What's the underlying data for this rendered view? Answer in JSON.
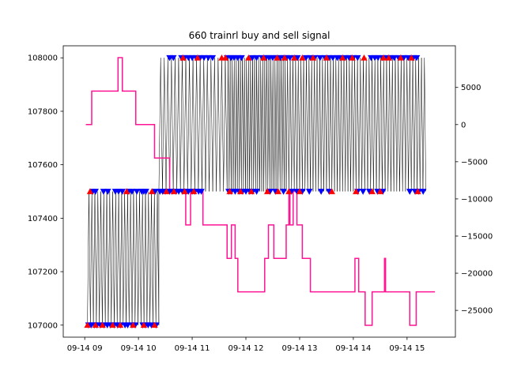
{
  "chart_data": {
    "type": "line",
    "title": "660 trainrl buy and sell signal",
    "xlabel": "",
    "ylabel": "",
    "ylabel_right": "",
    "x_tick_labels": [
      "09-14 09",
      "09-14 10",
      "09-14 11",
      "09-14 12",
      "09-14 13",
      "09-14 14",
      "09-14 15"
    ],
    "x_tick_hours": [
      9,
      10,
      11,
      12,
      13,
      14,
      15
    ],
    "xlim_hours": [
      8.6,
      15.9
    ],
    "left_axis": {
      "ylim": [
        106955,
        108045
      ],
      "ticks": [
        107000,
        107200,
        107400,
        107600,
        107800,
        108000
      ],
      "tick_labels": [
        "107000",
        "107200",
        "107400",
        "107600",
        "107800",
        "108000"
      ]
    },
    "right_axis": {
      "ylim": [
        -28600,
        10600
      ],
      "ticks": [
        -25000,
        -20000,
        -15000,
        -10000,
        -5000,
        0,
        5000
      ],
      "tick_labels": [
        "−25000",
        "−20000",
        "−15000",
        "−10000",
        "−5000",
        "0",
        "5000"
      ]
    },
    "colors": {
      "price": "#000000",
      "position": "#ff1493",
      "buy_marker": "#ff0000",
      "sell_marker": "#0000ff"
    },
    "series": [
      {
        "role": "price",
        "axis": "left",
        "segments": [
          {
            "x_start": 9.05,
            "x_end": 10.38,
            "low": 107000,
            "high": 107500,
            "alternations": 48
          },
          {
            "x_start": 10.38,
            "x_end": 11.65,
            "low": 107500,
            "high": 108000,
            "alternations": 38
          },
          {
            "x_start": 11.65,
            "x_end": 12.75,
            "low": 107500,
            "high": 108000,
            "alternations": 58
          },
          {
            "x_start": 12.75,
            "x_end": 14.05,
            "low": 107500,
            "high": 108000,
            "alternations": 52
          },
          {
            "x_start": 14.05,
            "x_end": 15.35,
            "low": 107500,
            "high": 108000,
            "alternations": 48
          }
        ]
      },
      {
        "role": "position",
        "axis": "right",
        "points": [
          [
            9.02,
            0
          ],
          [
            9.13,
            0
          ],
          [
            9.13,
            4500
          ],
          [
            9.62,
            4500
          ],
          [
            9.62,
            9000
          ],
          [
            9.7,
            9000
          ],
          [
            9.7,
            4500
          ],
          [
            9.95,
            4500
          ],
          [
            9.95,
            0
          ],
          [
            10.3,
            0
          ],
          [
            10.3,
            -4500
          ],
          [
            10.58,
            -4500
          ],
          [
            10.58,
            -9000
          ],
          [
            10.88,
            -9000
          ],
          [
            10.88,
            -13500
          ],
          [
            10.97,
            -13500
          ],
          [
            10.97,
            -9000
          ],
          [
            11.2,
            -9000
          ],
          [
            11.2,
            -13500
          ],
          [
            11.65,
            -13500
          ],
          [
            11.65,
            -18000
          ],
          [
            11.73,
            -18000
          ],
          [
            11.73,
            -13500
          ],
          [
            11.8,
            -13500
          ],
          [
            11.8,
            -18000
          ],
          [
            11.85,
            -18000
          ],
          [
            11.85,
            -22500
          ],
          [
            12.35,
            -22500
          ],
          [
            12.35,
            -18000
          ],
          [
            12.42,
            -18000
          ],
          [
            12.42,
            -13500
          ],
          [
            12.52,
            -13500
          ],
          [
            12.52,
            -18000
          ],
          [
            12.75,
            -18000
          ],
          [
            12.75,
            -13500
          ],
          [
            12.8,
            -13500
          ],
          [
            12.8,
            -9000
          ],
          [
            12.82,
            -9000
          ],
          [
            12.82,
            -13500
          ],
          [
            12.88,
            -13500
          ],
          [
            12.88,
            -9000
          ],
          [
            12.95,
            -9000
          ],
          [
            12.95,
            -13500
          ],
          [
            13.05,
            -13500
          ],
          [
            13.05,
            -18000
          ],
          [
            13.2,
            -18000
          ],
          [
            13.2,
            -22500
          ],
          [
            14.03,
            -22500
          ],
          [
            14.03,
            -18000
          ],
          [
            14.1,
            -18000
          ],
          [
            14.1,
            -22500
          ],
          [
            14.22,
            -22500
          ],
          [
            14.22,
            -27000
          ],
          [
            14.35,
            -27000
          ],
          [
            14.35,
            -22500
          ],
          [
            14.58,
            -22500
          ],
          [
            14.58,
            -18000
          ],
          [
            14.6,
            -18000
          ],
          [
            14.6,
            -22500
          ],
          [
            15.05,
            -22500
          ],
          [
            15.05,
            -27000
          ],
          [
            15.17,
            -27000
          ],
          [
            15.17,
            -22500
          ],
          [
            15.52,
            -22500
          ]
        ]
      }
    ],
    "markers": [
      {
        "role": "sell",
        "shape": "triangle-down",
        "level": 107000,
        "x": [
          9.07,
          9.12,
          9.18,
          9.23,
          9.29,
          9.36,
          9.42,
          9.48,
          9.55,
          9.61,
          9.67,
          9.75,
          9.8,
          9.88,
          9.94,
          10.08,
          10.13,
          10.18,
          10.24,
          10.33
        ]
      },
      {
        "role": "buy",
        "shape": "triangle-up",
        "level": 107000,
        "x": [
          9.05,
          9.2,
          9.33,
          9.52,
          9.66,
          9.9,
          10.1,
          10.3
        ]
      },
      {
        "role": "sell",
        "shape": "triangle-down",
        "level": 107500,
        "x": [
          9.15,
          9.2,
          9.35,
          9.43,
          9.57,
          9.63,
          9.7,
          9.82,
          9.88,
          9.97,
          10.06,
          10.1,
          10.14,
          10.31,
          10.4,
          10.45,
          10.5,
          10.58,
          10.63,
          10.7,
          10.75,
          10.82,
          10.88,
          10.93,
          11.0,
          11.05,
          11.12,
          11.17,
          11.68,
          11.73,
          11.8,
          11.87,
          11.94,
          12.0,
          12.07,
          12.13,
          12.2,
          12.45,
          12.55,
          12.7,
          12.85,
          12.95,
          13.05,
          13.18,
          13.4,
          13.55,
          14.08,
          14.18,
          14.3,
          14.45,
          14.55,
          15.05,
          15.15,
          15.22,
          15.3
        ]
      },
      {
        "role": "buy",
        "shape": "triangle-up",
        "level": 107500,
        "x": [
          9.1,
          9.78,
          10.25,
          10.52,
          10.66,
          10.86,
          11.03,
          11.7,
          11.9,
          12.1,
          12.4,
          12.6,
          12.8,
          13.0,
          13.6,
          14.05,
          14.35,
          14.5,
          15.2
        ]
      },
      {
        "role": "sell",
        "shape": "triangle-down",
        "level": 108000,
        "x": [
          10.58,
          10.65,
          10.8,
          10.86,
          10.93,
          11.0,
          11.07,
          11.15,
          11.22,
          11.3,
          11.38,
          11.65,
          11.72,
          11.78,
          11.85,
          11.92,
          12.12,
          12.2,
          12.3,
          12.37,
          12.43,
          12.5,
          12.56,
          12.64,
          12.7,
          12.76,
          12.82,
          12.9,
          12.96,
          13.12,
          13.2,
          13.28,
          13.38,
          13.47,
          13.55,
          13.62,
          13.7,
          13.76,
          13.85,
          13.92,
          14.0,
          14.08,
          14.33,
          14.4,
          14.46,
          14.54,
          14.62,
          14.7,
          14.76,
          14.84,
          14.94,
          15.02,
          15.12,
          15.18
        ]
      },
      {
        "role": "buy",
        "shape": "triangle-up",
        "level": 108000,
        "x": [
          10.83,
          11.1,
          11.55,
          11.62,
          12.05,
          12.33,
          12.58,
          12.72,
          12.9,
          13.05,
          13.25,
          13.5,
          13.8,
          13.98,
          14.2,
          14.56,
          14.66,
          14.88,
          15.08
        ]
      }
    ]
  }
}
